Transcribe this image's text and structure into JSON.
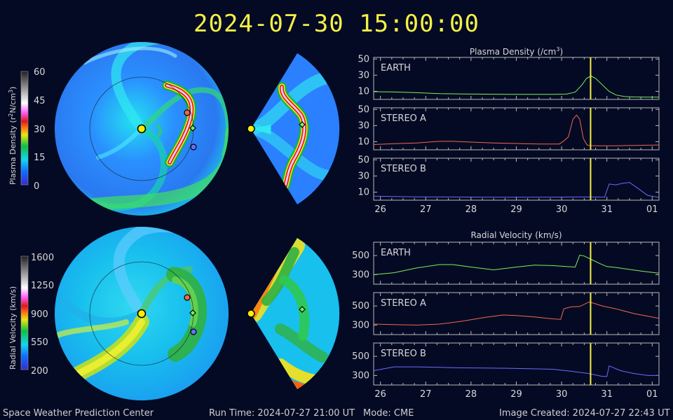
{
  "timestamp": "2024-07-30 15:00:00",
  "footer": {
    "center": "Space Weather Prediction Center",
    "run_time": "Run Time: 2024-07-27 21:00 UT",
    "mode": "Mode: CME",
    "created": "Image Created: 2024-07-27 22:43 UT"
  },
  "colors": {
    "background": "#040a24",
    "title": "#f4f046",
    "earth": "#7cf05a",
    "stereo_a": "#f0684c",
    "stereo_b": "#6a6cff",
    "current_time_marker": "#f4f046"
  },
  "colorbars": [
    {
      "label": "Plasma Density (r",
      "label_sup": "2",
      "label_end": "N/cm",
      "label_sup2": "3",
      "label_close": ")",
      "ticks": [
        "60",
        "45",
        "30",
        "15",
        "0"
      ]
    },
    {
      "label": "Radial Velocity (km/s)",
      "ticks": [
        "1600",
        "1250",
        "900",
        "550",
        "200"
      ]
    }
  ],
  "chart_data": [
    {
      "type": "line",
      "title": "Plasma Density (/cm",
      "title_sup": "3",
      "title_close": ")",
      "x_ticks": [
        "26",
        "27",
        "28",
        "29",
        "30",
        "31",
        "01"
      ],
      "xlim": [
        25.85,
        32.15
      ],
      "current_time_x": 30.64,
      "panels": [
        {
          "name": "EARTH",
          "ylim": [
            0,
            52
          ],
          "y_ticks": [
            10,
            30,
            50
          ],
          "series": {
            "x": [
              25.85,
              26.3,
              26.8,
              27.3,
              27.8,
              28.3,
              28.8,
              29.3,
              29.8,
              30.1,
              30.3,
              30.45,
              30.55,
              30.65,
              30.75,
              30.9,
              31.05,
              31.2,
              31.4,
              31.6,
              31.9,
              32.15
            ],
            "y": [
              9.5,
              9.2,
              8.3,
              7.2,
              6.8,
              6.5,
              6.3,
              6.2,
              6.3,
              6.5,
              9,
              18,
              26,
              29,
              26,
              18,
              10,
              5.5,
              3.5,
              3,
              2.9,
              2.9
            ]
          }
        },
        {
          "name": "STEREO A",
          "ylim": [
            0,
            52
          ],
          "y_ticks": [
            10,
            30,
            50
          ],
          "series": {
            "x": [
              25.85,
              26.3,
              26.8,
              27.3,
              27.6,
              28.0,
              28.5,
              29.0,
              29.5,
              29.95,
              30.05,
              30.15,
              30.25,
              30.33,
              30.4,
              30.48,
              30.56,
              30.65,
              30.8,
              31.2,
              31.6,
              32.15
            ],
            "y": [
              6.5,
              7.5,
              8.5,
              10.5,
              10.5,
              9.5,
              8.5,
              7.8,
              7.2,
              7.2,
              11,
              16,
              38,
              43,
              38,
              14,
              6,
              5.2,
              5,
              5,
              5.5,
              6
            ]
          }
        },
        {
          "name": "STEREO B",
          "ylim": [
            0,
            52
          ],
          "y_ticks": [
            10,
            30,
            50
          ],
          "series": {
            "x": [
              25.85,
              26.3,
              26.8,
              27.3,
              27.8,
              28.3,
              28.8,
              29.3,
              29.8,
              30.3,
              30.7,
              30.95,
              31.05,
              31.2,
              31.35,
              31.5,
              31.7,
              31.9,
              32.15
            ],
            "y": [
              5,
              4.6,
              4.2,
              4.0,
              3.9,
              3.8,
              3.7,
              3.7,
              3.8,
              4.0,
              4.0,
              3.8,
              20,
              19,
              21,
              22,
              14,
              6,
              3.5
            ]
          }
        }
      ]
    },
    {
      "type": "line",
      "title": "Radial Velocity (km/s)",
      "x_ticks": [
        "26",
        "27",
        "28",
        "29",
        "30",
        "31",
        "01"
      ],
      "xlim": [
        25.85,
        32.15
      ],
      "current_time_x": 30.64,
      "panels": [
        {
          "name": "EARTH",
          "ylim": [
            200,
            640
          ],
          "y_ticks": [
            300,
            500
          ],
          "series": {
            "x": [
              25.85,
              26.3,
              26.8,
              27.3,
              27.6,
              28.0,
              28.5,
              29.0,
              29.4,
              29.8,
              30.1,
              30.3,
              30.4,
              30.5,
              30.65,
              30.85,
              31.0,
              31.2,
              31.5,
              31.8,
              32.15
            ],
            "y": [
              300,
              320,
              370,
              405,
              405,
              380,
              350,
              380,
              400,
              395,
              385,
              380,
              505,
              495,
              460,
              415,
              385,
              375,
              355,
              335,
              315
            ]
          }
        },
        {
          "name": "STEREO A",
          "ylim": [
            200,
            640
          ],
          "y_ticks": [
            300,
            500
          ],
          "series": {
            "x": [
              25.85,
              26.3,
              26.8,
              27.3,
              27.8,
              28.3,
              28.7,
              29.0,
              29.4,
              29.8,
              29.98,
              30.05,
              30.2,
              30.4,
              30.6,
              30.7,
              30.9,
              31.2,
              31.6,
              32.15
            ],
            "y": [
              310,
              305,
              300,
              310,
              340,
              380,
              405,
              400,
              385,
              365,
              360,
              470,
              490,
              495,
              540,
              530,
              500,
              470,
              420,
              370
            ]
          }
        },
        {
          "name": "STEREO B",
          "ylim": [
            200,
            640
          ],
          "y_ticks": [
            300,
            500
          ],
          "series": {
            "x": [
              25.85,
              26.3,
              26.8,
              27.3,
              27.8,
              28.3,
              28.8,
              29.3,
              29.8,
              30.2,
              30.6,
              30.9,
              31.0,
              31.05,
              31.3,
              31.6,
              31.9,
              32.15
            ],
            "y": [
              350,
              390,
              390,
              385,
              380,
              378,
              375,
              370,
              365,
              345,
              320,
              290,
              290,
              400,
              350,
              320,
              300,
              300
            ]
          }
        }
      ]
    }
  ]
}
